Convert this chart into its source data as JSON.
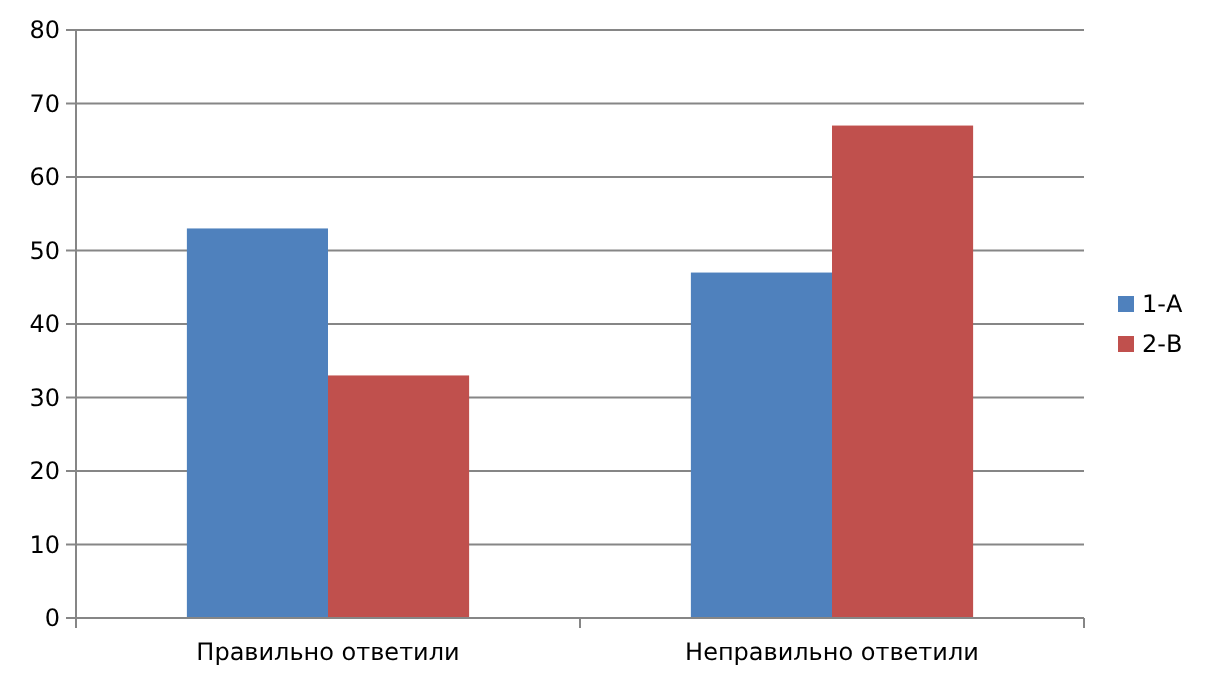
{
  "chart_data": {
    "type": "bar",
    "categories": [
      "Правильно ответили",
      "Неправильно ответили"
    ],
    "series": [
      {
        "name": "1-А",
        "color": "#4f81bd",
        "values": [
          53,
          47
        ]
      },
      {
        "name": "2-В",
        "color": "#c0504d",
        "values": [
          33,
          67
        ]
      }
    ],
    "ylim": [
      0,
      80
    ],
    "yticks": [
      0,
      10,
      20,
      30,
      40,
      50,
      60,
      70,
      80
    ],
    "grid": "y",
    "legend": "right"
  }
}
